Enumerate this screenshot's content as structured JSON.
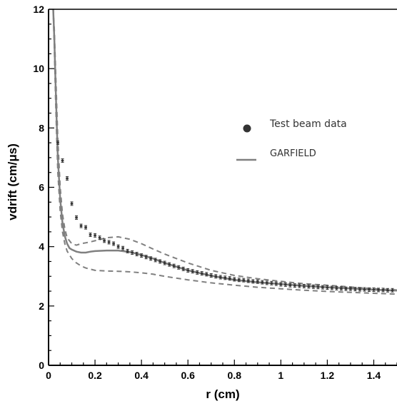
{
  "chart_data": {
    "type": "scatter",
    "xlabel": "r (cm)",
    "ylabel": "vdrift (cm/μs)",
    "xlim": [
      0,
      1.5
    ],
    "ylim": [
      0,
      12
    ],
    "xticks": [
      0,
      0.2,
      0.4,
      0.6,
      0.8,
      1,
      1.2,
      1.4
    ],
    "xtick_labels": [
      "0",
      "0.2",
      "0.4",
      "0.6",
      "0.8",
      "1",
      "1.2",
      "1.4"
    ],
    "yticks": [
      0,
      2,
      4,
      6,
      8,
      10,
      12
    ],
    "ytick_labels": [
      "0",
      "2",
      "4",
      "6",
      "8",
      "10",
      "12"
    ],
    "grid": false,
    "legend_position": "right",
    "legend": {
      "points_label": "Test beam data",
      "line_label": "GARFIELD"
    },
    "colors": {
      "points": "#333333",
      "line": "#808080",
      "band": "#808080"
    },
    "series": [
      {
        "name": "Test beam data",
        "kind": "points_with_error_bars",
        "x": [
          0.04,
          0.06,
          0.08,
          0.1,
          0.12,
          0.14,
          0.16,
          0.18,
          0.2,
          0.22,
          0.24,
          0.26,
          0.28,
          0.3,
          0.32,
          0.34,
          0.36,
          0.38,
          0.4,
          0.42,
          0.44,
          0.46,
          0.48,
          0.5,
          0.52,
          0.54,
          0.56,
          0.58,
          0.6,
          0.62,
          0.64,
          0.66,
          0.68,
          0.7,
          0.72,
          0.74,
          0.76,
          0.78,
          0.8,
          0.82,
          0.84,
          0.86,
          0.88,
          0.9,
          0.92,
          0.94,
          0.96,
          0.98,
          1.0,
          1.02,
          1.04,
          1.06,
          1.08,
          1.1,
          1.12,
          1.14,
          1.16,
          1.18,
          1.2,
          1.22,
          1.24,
          1.26,
          1.28,
          1.3,
          1.32,
          1.34,
          1.36,
          1.38,
          1.4,
          1.42,
          1.44,
          1.46,
          1.48
        ],
        "y": [
          7.5,
          6.9,
          6.3,
          5.45,
          4.98,
          4.7,
          4.65,
          4.4,
          4.38,
          4.3,
          4.2,
          4.15,
          4.1,
          4.0,
          3.95,
          3.85,
          3.8,
          3.75,
          3.7,
          3.65,
          3.6,
          3.55,
          3.5,
          3.45,
          3.4,
          3.35,
          3.3,
          3.25,
          3.2,
          3.17,
          3.13,
          3.1,
          3.07,
          3.03,
          3.0,
          2.97,
          2.95,
          2.93,
          2.9,
          2.88,
          2.87,
          2.85,
          2.83,
          2.82,
          2.8,
          2.78,
          2.77,
          2.75,
          2.73,
          2.72,
          2.7,
          2.69,
          2.68,
          2.67,
          2.66,
          2.65,
          2.64,
          2.63,
          2.62,
          2.61,
          2.6,
          2.59,
          2.58,
          2.58,
          2.57,
          2.56,
          2.56,
          2.55,
          2.55,
          2.54,
          2.54,
          2.53,
          2.53
        ],
        "yerr": 0.06
      },
      {
        "name": "GARFIELD",
        "kind": "line",
        "x": [
          0.02,
          0.025,
          0.03,
          0.035,
          0.04,
          0.05,
          0.06,
          0.07,
          0.08,
          0.09,
          0.1,
          0.12,
          0.14,
          0.16,
          0.18,
          0.2,
          0.25,
          0.3,
          0.35,
          0.4,
          0.45,
          0.5,
          0.6,
          0.7,
          0.8,
          0.9,
          1.0,
          1.1,
          1.2,
          1.3,
          1.4,
          1.5
        ],
        "y": [
          12.0,
          11.0,
          9.5,
          8.2,
          7.0,
          5.6,
          4.8,
          4.35,
          4.1,
          3.95,
          3.9,
          3.83,
          3.8,
          3.8,
          3.83,
          3.85,
          3.87,
          3.87,
          3.82,
          3.72,
          3.6,
          3.45,
          3.2,
          3.02,
          2.88,
          2.8,
          2.74,
          2.68,
          2.63,
          2.59,
          2.55,
          2.52
        ]
      },
      {
        "name": "",
        "kind": "band_upper",
        "x": [
          0.02,
          0.025,
          0.03,
          0.035,
          0.04,
          0.05,
          0.06,
          0.07,
          0.08,
          0.1,
          0.12,
          0.14,
          0.16,
          0.18,
          0.2,
          0.25,
          0.3,
          0.35,
          0.4,
          0.45,
          0.5,
          0.6,
          0.7,
          0.8,
          0.9,
          1.0,
          1.1,
          1.2,
          1.3,
          1.4,
          1.5
        ],
        "y": [
          12.0,
          11.3,
          10.0,
          8.8,
          7.6,
          6.0,
          5.1,
          4.6,
          4.3,
          4.1,
          4.05,
          4.1,
          4.13,
          4.16,
          4.2,
          4.3,
          4.33,
          4.25,
          4.1,
          3.92,
          3.75,
          3.45,
          3.2,
          3.03,
          2.92,
          2.83,
          2.75,
          2.7,
          2.64,
          2.58,
          2.54
        ]
      },
      {
        "name": "",
        "kind": "band_lower",
        "x": [
          0.02,
          0.025,
          0.03,
          0.035,
          0.04,
          0.05,
          0.06,
          0.07,
          0.08,
          0.1,
          0.12,
          0.14,
          0.16,
          0.2,
          0.25,
          0.3,
          0.35,
          0.4,
          0.45,
          0.5,
          0.6,
          0.7,
          0.8,
          0.9,
          1.0,
          1.1,
          1.2,
          1.3,
          1.4,
          1.5
        ],
        "y": [
          12.0,
          10.7,
          9.0,
          7.7,
          6.5,
          5.2,
          4.5,
          4.1,
          3.85,
          3.6,
          3.45,
          3.35,
          3.28,
          3.2,
          3.18,
          3.17,
          3.15,
          3.12,
          3.07,
          3.0,
          2.88,
          2.78,
          2.7,
          2.63,
          2.58,
          2.53,
          2.49,
          2.46,
          2.43,
          2.4
        ]
      }
    ]
  }
}
